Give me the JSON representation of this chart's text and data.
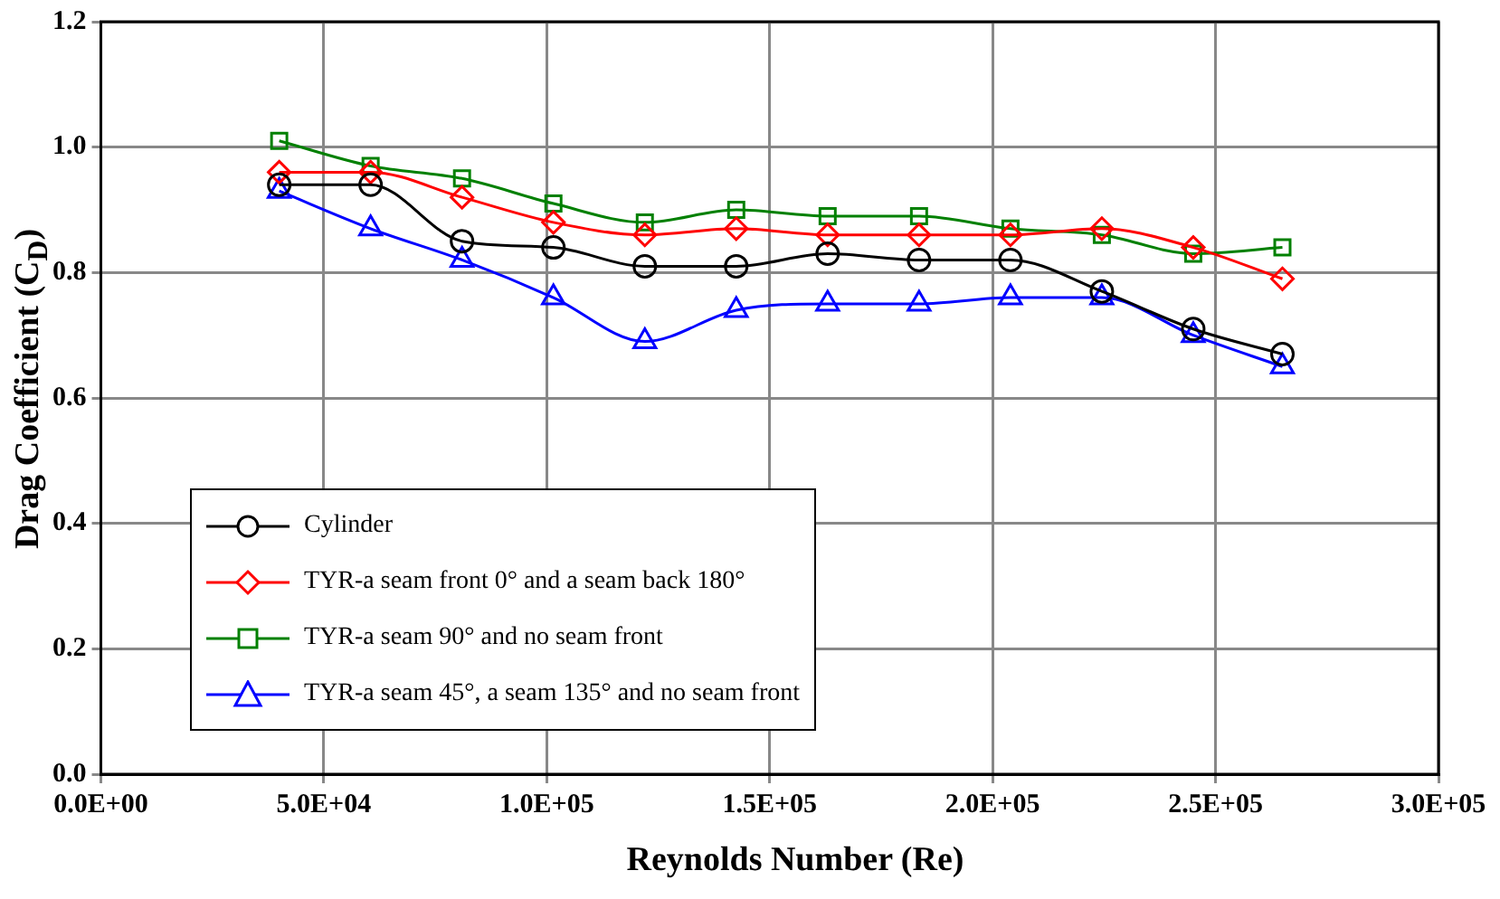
{
  "chart_data": {
    "type": "line",
    "xlabel": "Reynolds Number (Re)",
    "ylabel": "Drag Coefficient (C$_{D}$)",
    "x": [
      40000,
      60500,
      81000,
      101500,
      122000,
      142500,
      163000,
      183500,
      204000,
      224500,
      245000,
      265000
    ],
    "series": [
      {
        "name": "Cylinder",
        "color": "#000000",
        "marker": "circle",
        "values": [
          0.94,
          0.94,
          0.85,
          0.84,
          0.81,
          0.81,
          0.83,
          0.82,
          0.82,
          0.77,
          0.71,
          0.67
        ]
      },
      {
        "name": "TYR-a seam front 0° and a seam back 180°",
        "color": "#ff0000",
        "marker": "diamond",
        "values": [
          0.96,
          0.96,
          0.92,
          0.88,
          0.86,
          0.87,
          0.86,
          0.86,
          0.86,
          0.87,
          0.84,
          0.79
        ]
      },
      {
        "name": "TYR-a seam 90° and no seam front",
        "color": "#008000",
        "marker": "square",
        "values": [
          1.01,
          0.97,
          0.95,
          0.91,
          0.88,
          0.9,
          0.89,
          0.89,
          0.87,
          0.86,
          0.83,
          0.84
        ]
      },
      {
        "name": "TYR-a seam 45°, a seam 135° and no seam front",
        "color": "#0000ff",
        "marker": "triangle",
        "values": [
          0.93,
          0.87,
          0.82,
          0.76,
          0.69,
          0.74,
          0.75,
          0.75,
          0.76,
          0.76,
          0.7,
          0.65
        ]
      }
    ],
    "xlim": [
      0,
      300000
    ],
    "xticks": [
      {
        "value": 0,
        "label": "0.0E+00"
      },
      {
        "value": 50000,
        "label": "5.0E+04"
      },
      {
        "value": 100000,
        "label": "1.0E+05"
      },
      {
        "value": 150000,
        "label": "1.5E+05"
      },
      {
        "value": 200000,
        "label": "2.0E+05"
      },
      {
        "value": 250000,
        "label": "2.5E+05"
      },
      {
        "value": 300000,
        "label": "3.0E+05"
      }
    ],
    "ylim": [
      0,
      1.2
    ],
    "yticks": [
      {
        "value": 0,
        "label": "0.0"
      },
      {
        "value": 0.2,
        "label": "0.2"
      },
      {
        "value": 0.4,
        "label": "0.4"
      },
      {
        "value": 0.6,
        "label": "0.6"
      },
      {
        "value": 0.8,
        "label": "0.8"
      },
      {
        "value": 1,
        "label": "1.0"
      },
      {
        "value": 1.2,
        "label": "1.2"
      }
    ],
    "grid": true,
    "legend": "bottom left",
    "line_style": "solid"
  }
}
